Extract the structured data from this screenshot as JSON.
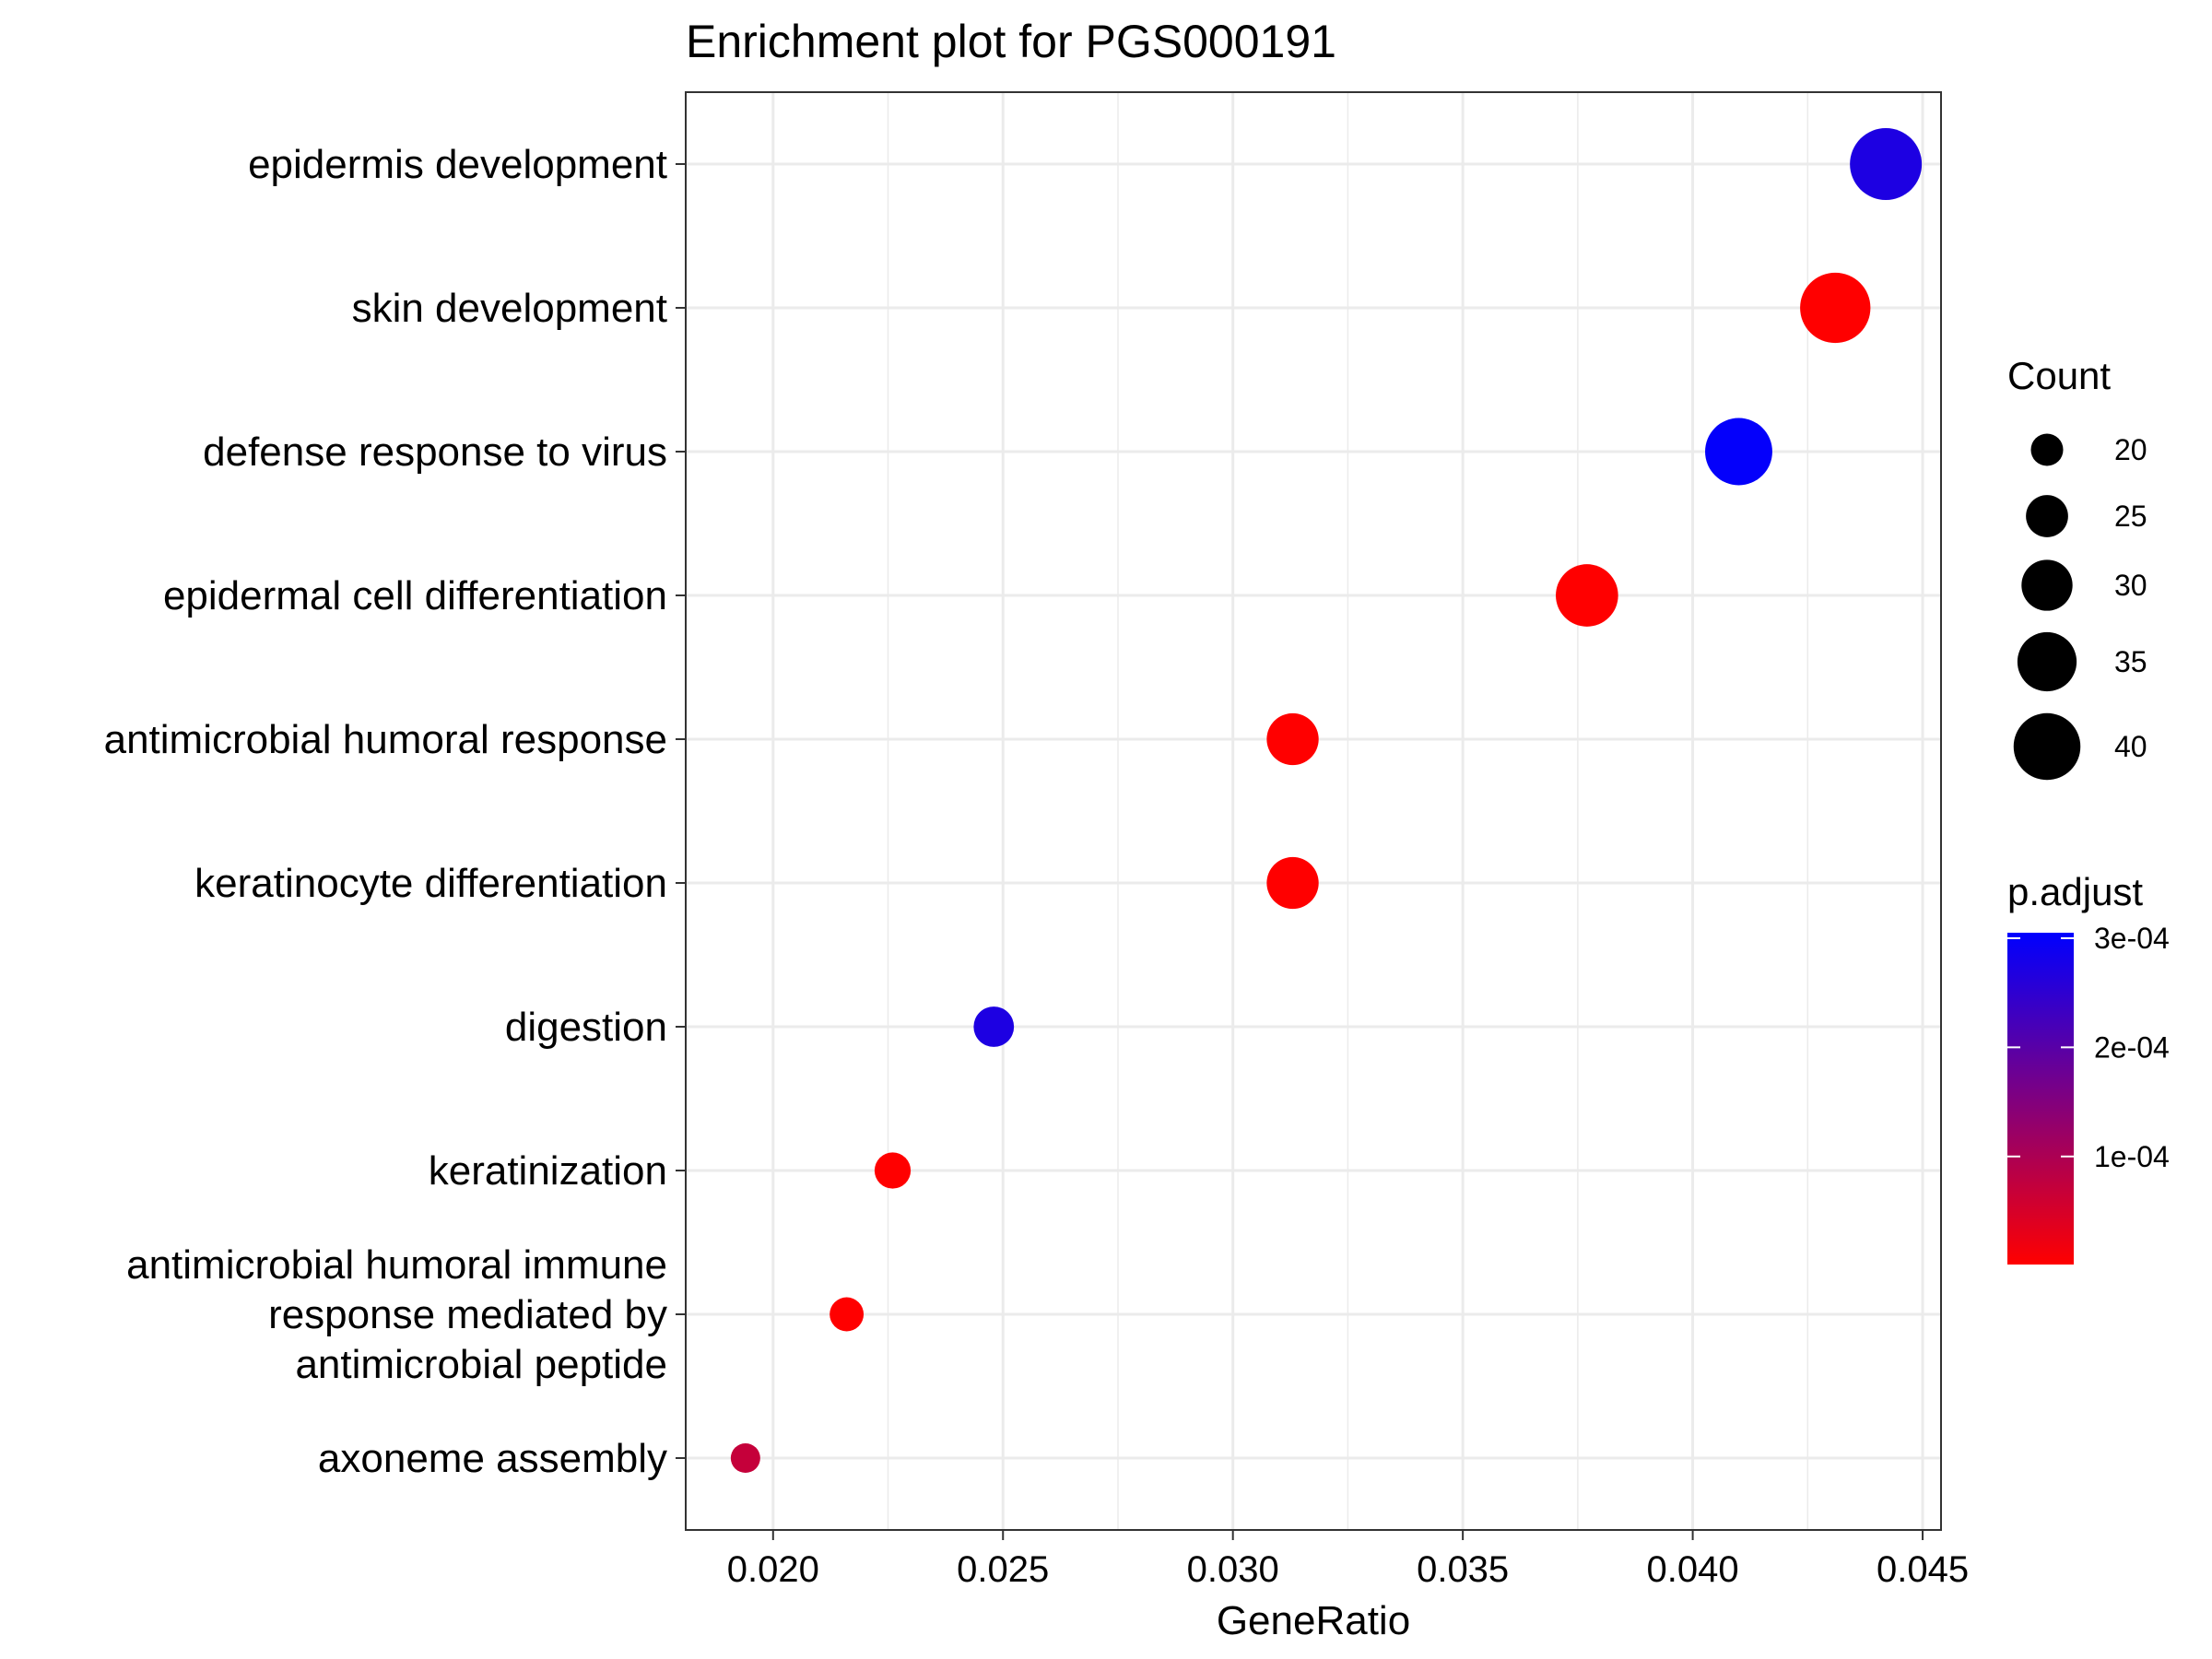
{
  "chart_data": {
    "type": "scatter",
    "title": "Enrichment plot for PGS000191",
    "xlabel": "GeneRatio",
    "ylabel": "",
    "xlim": [
      0.0181,
      0.0454
    ],
    "xticks": [
      0.02,
      0.025,
      0.03,
      0.035,
      0.04,
      0.045
    ],
    "xtick_labels": [
      "0.020",
      "0.025",
      "0.030",
      "0.035",
      "0.040",
      "0.045"
    ],
    "grid": true,
    "legend_position": "right",
    "points": [
      {
        "term": [
          "epidermis development"
        ],
        "gene_ratio": 0.0442,
        "count": 41,
        "p_adjust": 0.00027
      },
      {
        "term": [
          "skin development"
        ],
        "gene_ratio": 0.0431,
        "count": 40,
        "p_adjust": 0.0
      },
      {
        "term": [
          "defense response to virus"
        ],
        "gene_ratio": 0.041,
        "count": 38,
        "p_adjust": 0.0003
      },
      {
        "term": [
          "epidermal cell differentiation"
        ],
        "gene_ratio": 0.0377,
        "count": 35,
        "p_adjust": 0.0
      },
      {
        "term": [
          "antimicrobial humoral response"
        ],
        "gene_ratio": 0.0313,
        "count": 29,
        "p_adjust": 0.0
      },
      {
        "term": [
          "keratinocyte differentiation"
        ],
        "gene_ratio": 0.0313,
        "count": 29,
        "p_adjust": 0.0
      },
      {
        "term": [
          "digestion"
        ],
        "gene_ratio": 0.0248,
        "count": 23,
        "p_adjust": 0.00027
      },
      {
        "term": [
          "keratinization"
        ],
        "gene_ratio": 0.0226,
        "count": 21,
        "p_adjust": 0.0
      },
      {
        "term": [
          "antimicrobial humoral immune",
          "response mediated by",
          "antimicrobial peptide"
        ],
        "gene_ratio": 0.0216,
        "count": 20,
        "p_adjust": 0.0
      },
      {
        "term": [
          "axoneme assembly"
        ],
        "gene_ratio": 0.0194,
        "count": 18,
        "p_adjust": 7e-05
      }
    ],
    "size_legend": {
      "title": "Count",
      "breaks": [
        20,
        25,
        30,
        35,
        40
      ],
      "labels": [
        "20",
        "25",
        "30",
        "35",
        "40"
      ]
    },
    "color_legend": {
      "title": "p.adjust",
      "low_color": "#ff0000",
      "high_color": "#0000ff",
      "limits": [
        1e-06,
        0.000305
      ],
      "breaks": [
        0.0001,
        0.0002,
        0.0003
      ],
      "labels": [
        "1e-04",
        "2e-04",
        "3e-04"
      ]
    }
  }
}
